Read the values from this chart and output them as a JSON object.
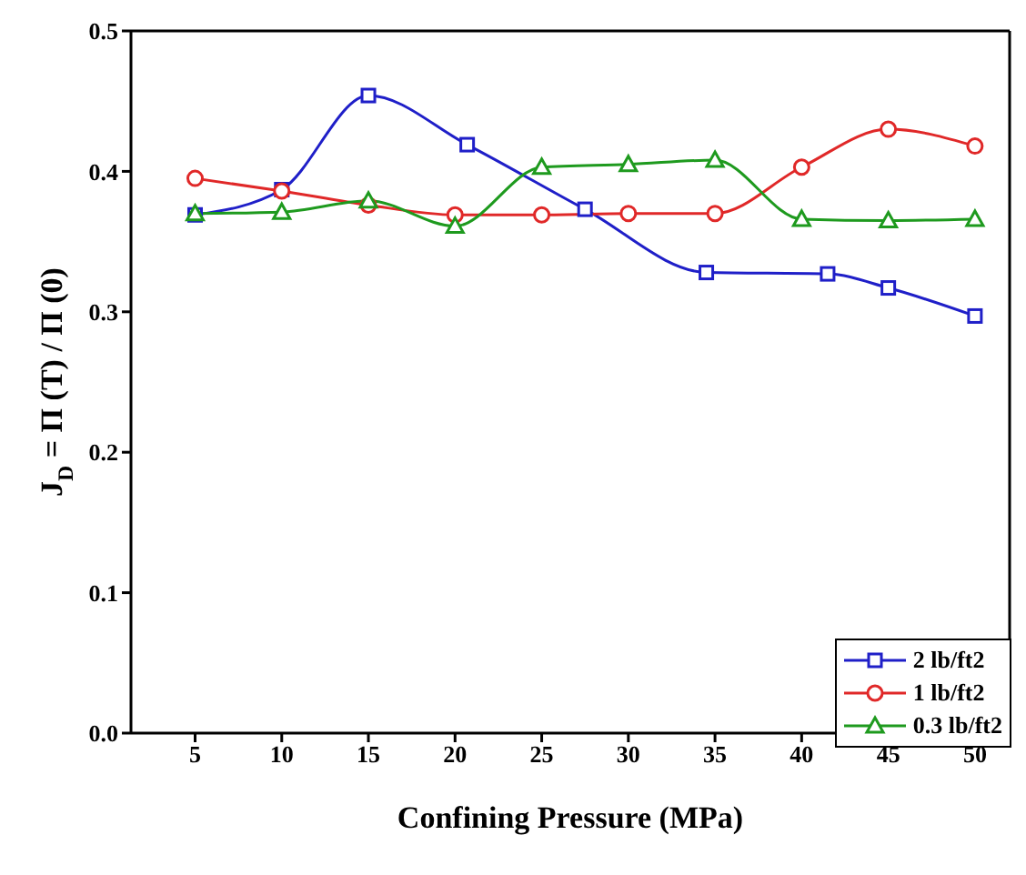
{
  "chart_data": {
    "type": "line",
    "xlabel": "Confining Pressure (MPa)",
    "ylabel": "J$_{D}$ = Π (T) / Π (0)",
    "xlim": [
      1.3,
      52
    ],
    "xticks": [
      5,
      10,
      15,
      20,
      25,
      30,
      35,
      40,
      45,
      50
    ],
    "ylim": [
      0,
      0.5
    ],
    "yticks": [
      {
        "value": 0,
        "label": "0.0"
      },
      0.1,
      0.2,
      0.3,
      0.4,
      0.5
    ],
    "legend": "bottom right",
    "line_style": "solid",
    "series": [
      {
        "name": "2 lb/ft2",
        "color": "#1f1fc8",
        "marker": "square",
        "x": [
          5,
          10,
          15,
          20.7,
          27.5,
          34.5,
          41.5,
          45,
          50
        ],
        "values": [
          0.369,
          0.387,
          0.454,
          0.419,
          0.373,
          0.328,
          0.327,
          0.317,
          0.297
        ]
      },
      {
        "name": "1 lb/ft2",
        "color": "#e02828",
        "marker": "circle",
        "x": [
          5,
          10,
          15,
          20,
          25,
          30,
          35,
          40,
          45,
          50
        ],
        "values": [
          0.395,
          0.386,
          0.376,
          0.369,
          0.369,
          0.37,
          0.37,
          0.403,
          0.43,
          0.418
        ]
      },
      {
        "name": "0.3 lb/ft2",
        "color": "#1e9a1e",
        "marker": "triangle",
        "x": [
          5,
          10,
          15,
          20,
          25,
          30,
          35,
          40,
          45,
          50
        ],
        "values": [
          0.37,
          0.371,
          0.379,
          0.361,
          0.403,
          0.405,
          0.408,
          0.366,
          0.365,
          0.366
        ]
      }
    ]
  }
}
